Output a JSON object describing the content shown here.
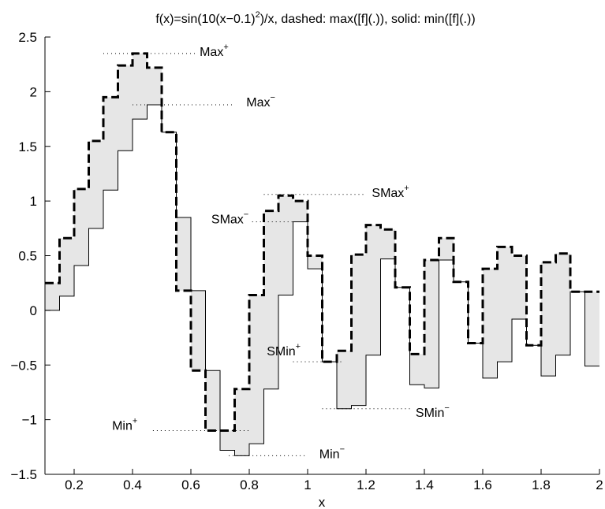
{
  "chart_data": {
    "type": "line",
    "title": {
      "prefix": "f(x)=sin(10(x−0.1)",
      "exponent": "2",
      "suffix": ")/x, dashed: max([f](.)), solid: min([f](.))"
    },
    "xlabel": "x",
    "ylabel": "",
    "xlim": [
      0.1,
      2.0
    ],
    "ylim": [
      -1.5,
      2.5
    ],
    "x_ticks": [
      0.2,
      0.4,
      0.6,
      0.8,
      1,
      1.2,
      1.4,
      1.6,
      1.8,
      2
    ],
    "x_tick_labels": [
      "0.2",
      "0.4",
      "0.6",
      "0.8",
      "1",
      "1.2",
      "1.4",
      "1.6",
      "1.8",
      "2"
    ],
    "y_ticks": [
      -1.5,
      -1,
      -0.5,
      0,
      0.5,
      1,
      1.5,
      2,
      2.5
    ],
    "y_tick_labels": [
      "−1.5",
      "−1",
      "−0.5",
      "0",
      "0.5",
      "1",
      "1.5",
      "2",
      "2.5"
    ],
    "grid": false,
    "fill_color": "#e6e6e6",
    "interval_edges": [
      0.1,
      0.15,
      0.2,
      0.25,
      0.3,
      0.35,
      0.4,
      0.45,
      0.5,
      0.55,
      0.6,
      0.65,
      0.7,
      0.75,
      0.8,
      0.85,
      0.9,
      0.95,
      1.0,
      1.05,
      1.1,
      1.15,
      1.2,
      1.25,
      1.3,
      1.35,
      1.4,
      1.45,
      1.5,
      1.55,
      1.6,
      1.65,
      1.7,
      1.75,
      1.8,
      1.85,
      1.9,
      1.95,
      2.0
    ],
    "series": [
      {
        "name": "max([f](.))",
        "style": "dashed",
        "values": [
          0.25,
          0.66,
          1.11,
          1.55,
          1.95,
          2.24,
          2.35,
          2.22,
          1.63,
          0.18,
          -0.55,
          -1.1,
          -1.1,
          -0.72,
          0.14,
          0.91,
          1.05,
          1.0,
          0.5,
          -0.47,
          -0.37,
          0.51,
          0.78,
          0.74,
          0.21,
          -0.4,
          0.46,
          0.66,
          0.26,
          -0.3,
          0.38,
          0.58,
          0.5,
          -0.32,
          0.44,
          0.52,
          0.17,
          0.17
        ]
      },
      {
        "name": "min([f](.))",
        "style": "solid",
        "values": [
          0.0,
          0.13,
          0.41,
          0.75,
          1.1,
          1.46,
          1.75,
          1.88,
          1.63,
          0.85,
          0.18,
          -0.55,
          -1.28,
          -1.33,
          -1.22,
          -0.72,
          0.14,
          0.81,
          0.38,
          -0.47,
          -0.9,
          -0.87,
          -0.41,
          0.47,
          0.21,
          -0.68,
          -0.71,
          0.46,
          0.26,
          -0.3,
          -0.62,
          -0.47,
          -0.08,
          -0.32,
          -0.6,
          -0.41,
          0.17,
          -0.51
        ]
      }
    ],
    "annotations": [
      {
        "base": "Max",
        "sup": "+",
        "x": 0.63,
        "y": 2.37,
        "line_x": [
          0.3,
          0.62
        ],
        "line_y": 2.35
      },
      {
        "base": "Max",
        "sup": "−",
        "x": 0.79,
        "y": 1.91,
        "line_x": [
          0.4,
          0.75
        ],
        "line_y": 1.88
      },
      {
        "base": "SMax",
        "sup": "+",
        "x": 1.22,
        "y": 1.08,
        "line_x": [
          0.85,
          1.2
        ],
        "line_y": 1.06
      },
      {
        "base": "SMax",
        "sup": "−",
        "x": 0.67,
        "y": 0.84,
        "line_x": [
          0.81,
          0.96
        ],
        "line_y": 0.81
      },
      {
        "base": "SMin",
        "sup": "+",
        "x": 0.86,
        "y": -0.37,
        "line_x": [
          0.95,
          1.12
        ],
        "line_y": -0.47
      },
      {
        "base": "SMin",
        "sup": "−",
        "x": 1.37,
        "y": -0.93,
        "line_x": [
          1.05,
          1.36
        ],
        "line_y": -0.9
      },
      {
        "base": "Min",
        "sup": "+",
        "x": 0.33,
        "y": -1.05,
        "line_x": [
          0.47,
          0.8
        ],
        "line_y": -1.1
      },
      {
        "base": "Min",
        "sup": "−",
        "x": 1.04,
        "y": -1.31,
        "line_x": [
          0.73,
          1.0
        ],
        "line_y": -1.33
      }
    ]
  }
}
